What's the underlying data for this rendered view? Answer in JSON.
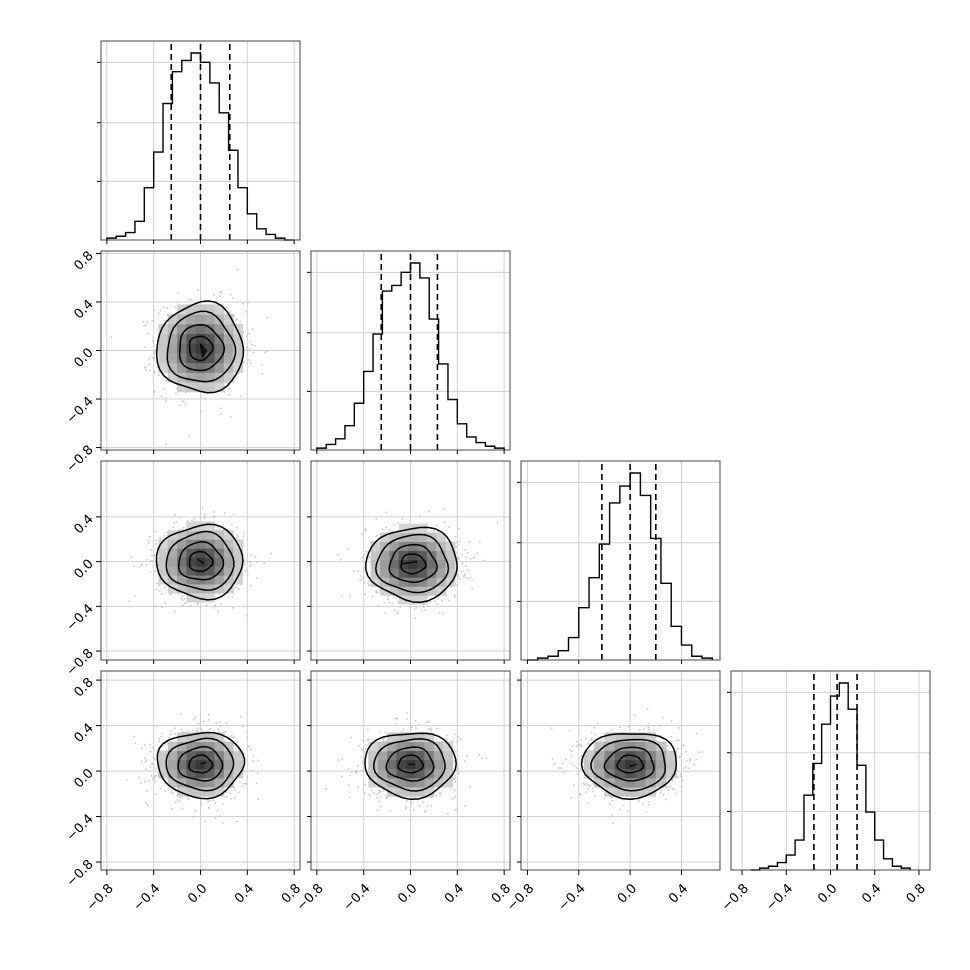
{
  "chart_data": {
    "type": "corner",
    "grid": true,
    "parameters": 4,
    "histograms": [
      {
        "name": "",
        "quantiles": [
          -0.25,
          0.0,
          0.25
        ],
        "x_range": [
          -0.85,
          0.85
        ],
        "edges": [
          -0.8,
          -0.72,
          -0.64,
          -0.56,
          -0.48,
          -0.4,
          -0.32,
          -0.24,
          -0.16,
          -0.08,
          0.0,
          0.08,
          0.16,
          0.24,
          0.32,
          0.4,
          0.48,
          0.56,
          0.64,
          0.72,
          0.8
        ],
        "counts": [
          0.01,
          0.02,
          0.04,
          0.1,
          0.28,
          0.47,
          0.73,
          0.9,
          0.96,
          1.0,
          0.95,
          0.84,
          0.68,
          0.48,
          0.28,
          0.14,
          0.06,
          0.03,
          0.01,
          0.0
        ]
      },
      {
        "name": "",
        "quantiles": [
          -0.25,
          0.0,
          0.23
        ],
        "x_range": [
          -0.85,
          0.85
        ],
        "edges": [
          -0.8,
          -0.72,
          -0.64,
          -0.56,
          -0.48,
          -0.4,
          -0.32,
          -0.24,
          -0.16,
          -0.08,
          0.0,
          0.08,
          0.16,
          0.24,
          0.32,
          0.4,
          0.48,
          0.56,
          0.64,
          0.72,
          0.8
        ],
        "counts": [
          0.01,
          0.03,
          0.06,
          0.13,
          0.25,
          0.42,
          0.62,
          0.85,
          0.88,
          0.95,
          1.0,
          0.92,
          0.7,
          0.46,
          0.27,
          0.14,
          0.07,
          0.04,
          0.02,
          0.01
        ]
      },
      {
        "name": "",
        "quantiles": [
          -0.22,
          0.0,
          0.2
        ],
        "x_range": [
          -0.85,
          0.7
        ],
        "edges": [
          -0.8,
          -0.72,
          -0.64,
          -0.56,
          -0.48,
          -0.4,
          -0.32,
          -0.24,
          -0.16,
          -0.08,
          0.0,
          0.08,
          0.16,
          0.24,
          0.32,
          0.4,
          0.48,
          0.56,
          0.64
        ],
        "counts": [
          0.0,
          0.01,
          0.02,
          0.05,
          0.12,
          0.28,
          0.44,
          0.62,
          0.84,
          0.93,
          1.0,
          0.88,
          0.65,
          0.41,
          0.18,
          0.08,
          0.02,
          0.01
        ]
      },
      {
        "name": "",
        "quantiles": [
          -0.15,
          0.06,
          0.24
        ],
        "x_range": [
          -0.9,
          0.9
        ],
        "edges": [
          -0.72,
          -0.64,
          -0.56,
          -0.48,
          -0.4,
          -0.32,
          -0.24,
          -0.16,
          -0.08,
          0.0,
          0.08,
          0.16,
          0.24,
          0.32,
          0.4,
          0.48,
          0.56,
          0.64,
          0.72
        ],
        "counts": [
          0.0,
          0.01,
          0.02,
          0.04,
          0.08,
          0.16,
          0.4,
          0.57,
          0.78,
          0.93,
          1.0,
          0.86,
          0.56,
          0.31,
          0.16,
          0.06,
          0.02,
          0.01
        ]
      }
    ],
    "scatter_panels": [
      {
        "row": 1,
        "col": 0,
        "center": [
          0.0,
          0.02
        ],
        "sd": [
          0.18,
          0.18
        ],
        "inner": [
          [
            0.0,
            0.05
          ],
          [
            0.05,
            0.0
          ],
          [
            0.02,
            -0.05
          ]
        ]
      },
      {
        "row": 2,
        "col": 0,
        "center": [
          0.0,
          0.0
        ],
        "sd": [
          0.18,
          0.16
        ],
        "inner": [
          [
            -0.02,
            0.02
          ],
          [
            0.03,
            -0.02
          ]
        ]
      },
      {
        "row": 2,
        "col": 1,
        "center": [
          0.02,
          -0.02
        ],
        "sd": [
          0.19,
          0.16
        ],
        "inner": [
          [
            -0.08,
            -0.02
          ],
          [
            0.06,
            0.0
          ]
        ]
      },
      {
        "row": 3,
        "col": 0,
        "center": [
          0.0,
          0.06
        ],
        "sd": [
          0.18,
          0.14
        ],
        "inner": [
          [
            0.0,
            0.06
          ],
          [
            0.05,
            0.08
          ]
        ]
      },
      {
        "row": 3,
        "col": 1,
        "center": [
          0.0,
          0.06
        ],
        "sd": [
          0.19,
          0.14
        ],
        "inner": [
          [
            -0.02,
            0.06
          ],
          [
            0.04,
            0.06
          ]
        ]
      },
      {
        "row": 3,
        "col": 2,
        "center": [
          0.0,
          0.06
        ],
        "sd": [
          0.18,
          0.14
        ],
        "inner": [
          [
            0.0,
            0.04
          ],
          [
            0.05,
            0.06
          ]
        ]
      }
    ],
    "col_x_ranges": [
      [
        -0.85,
        0.85
      ],
      [
        -0.85,
        0.85
      ],
      [
        -0.85,
        0.7
      ],
      [
        -0.9,
        0.9
      ]
    ],
    "row_y_ranges": [
      null,
      [
        -0.82,
        0.82
      ],
      [
        -0.88,
        0.9
      ],
      [
        -0.87,
        0.88
      ]
    ],
    "x_ticks": [
      [
        "−0.8",
        "−0.4",
        "0.0",
        "0.4",
        "0.8"
      ],
      [
        "−0.8",
        "−0.4",
        "0.0",
        "0.4",
        "0.8"
      ],
      [
        "−0.8",
        "−0.4",
        "0.0",
        "0.4"
      ],
      [
        "−0.8",
        "−0.4",
        "0.0",
        "0.4",
        "0.8"
      ]
    ],
    "y_ticks": [
      null,
      [
        "−0.8",
        "−0.4",
        "0.0",
        "0.4",
        "0.8"
      ],
      [
        "−0.8",
        "−0.4",
        "0.0",
        "0.4"
      ],
      [
        "−0.8",
        "−0.4",
        "0.0",
        "0.4",
        "0.8"
      ]
    ],
    "colors": {
      "line": "#000000",
      "scatter": "#bbbbbb",
      "grid": "#d0d0d0"
    }
  }
}
